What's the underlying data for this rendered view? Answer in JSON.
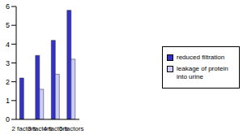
{
  "chart_data": {
    "type": "bar",
    "categories": [
      "2 factors",
      "3 factors",
      "4 factors",
      "5 factors"
    ],
    "series": [
      {
        "name": "reduced filtration",
        "color": "#3333cc",
        "values": [
          2.2,
          3.4,
          4.2,
          5.8
        ]
      },
      {
        "name": "leakage of protein into urine",
        "color": "#ccccff",
        "values": [
          0,
          1.6,
          2.4,
          3.2
        ]
      }
    ],
    "ylim": [
      0,
      6
    ],
    "yticks": [
      0,
      1,
      2,
      3,
      4,
      5,
      6
    ],
    "grid": false,
    "legend": "right"
  }
}
